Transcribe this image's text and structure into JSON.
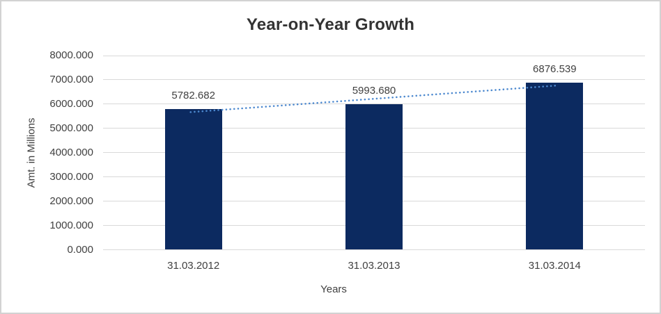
{
  "chart_data": {
    "type": "bar",
    "title": "Year-on-Year Growth",
    "categories": [
      "31.03.2012",
      "31.03.2013",
      "31.03.2014"
    ],
    "values": [
      5782.682,
      5993.68,
      6876.539
    ],
    "data_labels": [
      "5782.682",
      "5993.680",
      "6876.539"
    ],
    "xlabel": "Years",
    "ylabel": "Amt. in Millions",
    "ylim": [
      0,
      8000
    ],
    "y_ticks": [
      0,
      1000,
      2000,
      3000,
      4000,
      5000,
      6000,
      7000,
      8000
    ],
    "y_tick_labels": [
      "0.000",
      "1000.000",
      "2000.000",
      "3000.000",
      "4000.000",
      "5000.000",
      "6000.000",
      "7000.000",
      "8000.000"
    ],
    "grid": true,
    "legend": "none",
    "trendline": {
      "type": "linear",
      "style": "dotted"
    },
    "colors": {
      "bar": "#0c2a60",
      "trendline": "#4d89cf",
      "gridline": "#d9d9d9",
      "title_text": "#333333",
      "axis_text": "#404040",
      "frame_border": "#d2d2d2",
      "background": "#ffffff"
    }
  }
}
